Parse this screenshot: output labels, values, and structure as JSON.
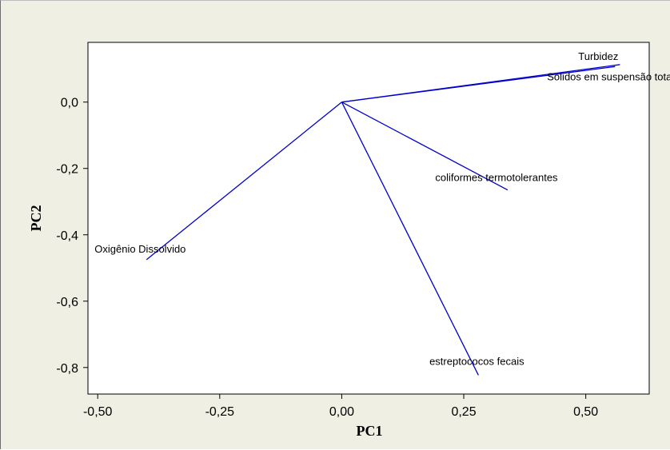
{
  "chart_data": {
    "type": "biplot",
    "xlabel": "PC1",
    "ylabel": "PC2",
    "xlim": [
      -0.52,
      0.63
    ],
    "ylim": [
      -0.88,
      0.18
    ],
    "x_ticks": [
      -0.5,
      -0.25,
      0.0,
      0.25,
      0.5
    ],
    "x_tick_labels": [
      "-0,50",
      "-0,25",
      "0,00",
      "0,25",
      "0,50"
    ],
    "y_ticks": [
      0.0,
      -0.2,
      -0.4,
      -0.6,
      -0.8
    ],
    "y_tick_labels": [
      "0,0",
      "-0,2",
      "-0,4",
      "-0,6",
      "-0,8"
    ],
    "line_color": "#0000cc",
    "plot_background": "#ffffff",
    "figure_background": "#efefe4",
    "grid": false,
    "origin": [
      0,
      0
    ],
    "vectors": [
      {
        "name": "Turbidez",
        "x": 0.57,
        "y": 0.113,
        "label_anchor": "end"
      },
      {
        "name": "Solidos em suspensão totais",
        "x": 0.56,
        "y": 0.107,
        "label_anchor": "start"
      },
      {
        "name": "coliformes termotolerantes",
        "x": 0.34,
        "y": -0.265,
        "label_anchor": "middle"
      },
      {
        "name": "estreptococos fecais",
        "x": 0.28,
        "y": -0.823,
        "label_anchor": "middle"
      },
      {
        "name": "Oxigênio Dissolvido",
        "x": -0.4,
        "y": -0.475,
        "label_anchor": "start"
      }
    ]
  }
}
